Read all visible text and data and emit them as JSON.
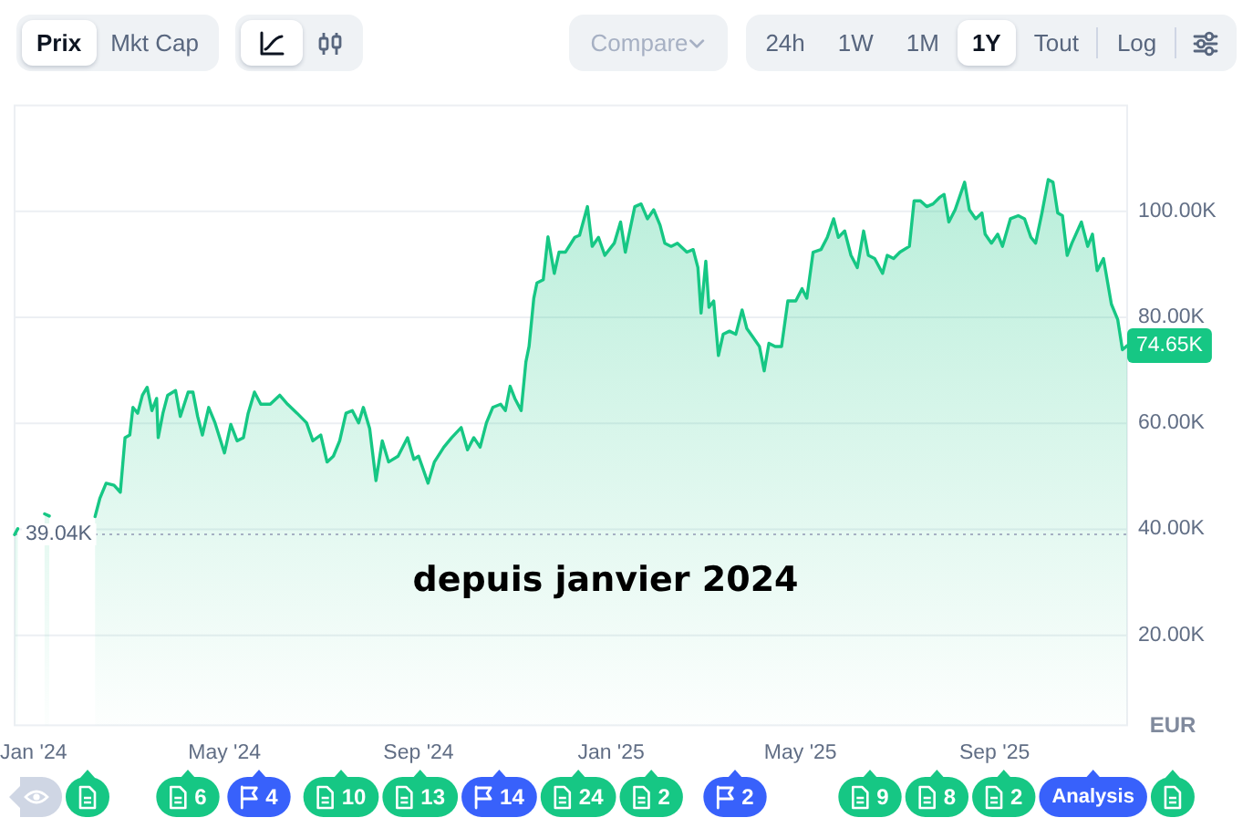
{
  "chart_data": [
    {
      "type": "other",
      "annotations": [
        "Prix",
        "Mkt Cap",
        "Compare",
        "24h",
        "1W",
        "1M",
        "1Y",
        "Tout",
        "Log"
      ]
    },
    {
      "type": "area",
      "x": [
        "2023-12-20",
        "2023-12-22",
        "2023-12-27",
        "2024-01-08",
        "2024-01-11",
        "2024-01-20",
        "2024-02-09",
        "2024-02-12",
        "2024-02-16",
        "2024-02-21",
        "2024-02-25",
        "2024-02-28",
        "2024-03-02",
        "2024-03-04",
        "2024-03-07",
        "2024-03-10",
        "2024-03-13",
        "2024-03-16",
        "2024-03-19",
        "2024-03-20",
        "2024-03-23",
        "2024-03-26",
        "2024-03-31",
        "2024-04-03",
        "2024-04-08",
        "2024-04-11",
        "2024-04-14",
        "2024-04-17",
        "2024-04-21",
        "2024-04-25",
        "2024-05-01",
        "2024-05-05",
        "2024-05-09",
        "2024-05-13",
        "2024-05-16",
        "2024-05-20",
        "2024-05-24",
        "2024-05-30",
        "2024-06-05",
        "2024-06-10",
        "2024-06-16",
        "2024-06-22",
        "2024-06-26",
        "2024-07-01",
        "2024-07-05",
        "2024-07-09",
        "2024-07-13",
        "2024-07-17",
        "2024-07-21",
        "2024-07-25",
        "2024-07-28",
        "2024-08-01",
        "2024-08-05",
        "2024-08-09",
        "2024-08-13",
        "2024-08-19",
        "2024-08-25",
        "2024-08-29",
        "2024-09-01",
        "2024-09-07",
        "2024-09-11",
        "2024-09-17",
        "2024-09-22",
        "2024-09-28",
        "2024-10-02",
        "2024-10-06",
        "2024-10-10",
        "2024-10-14",
        "2024-10-18",
        "2024-10-23",
        "2024-10-26",
        "2024-10-29",
        "2024-11-01",
        "2024-11-05",
        "2024-11-08",
        "2024-11-10",
        "2024-11-13",
        "2024-11-15",
        "2024-11-19",
        "2024-11-22",
        "2024-11-26",
        "2024-11-29",
        "2024-12-03",
        "2024-12-09",
        "2024-12-12",
        "2024-12-17",
        "2024-12-20",
        "2024-12-24",
        "2024-12-28",
        "2025-01-03",
        "2025-01-07",
        "2025-01-10",
        "2025-01-16",
        "2025-01-20",
        "2025-01-24",
        "2025-01-28",
        "2025-02-01",
        "2025-02-04",
        "2025-02-08",
        "2025-02-12",
        "2025-02-18",
        "2025-02-22",
        "2025-02-25",
        "2025-02-27",
        "2025-03-02",
        "2025-03-04",
        "2025-03-07",
        "2025-03-10",
        "2025-03-13",
        "2025-03-17",
        "2025-03-21",
        "2025-03-25",
        "2025-03-28",
        "2025-04-01",
        "2025-04-05",
        "2025-04-08",
        "2025-04-11",
        "2025-04-15",
        "2025-04-19",
        "2025-04-23",
        "2025-04-28",
        "2025-05-02",
        "2025-05-05",
        "2025-05-09",
        "2025-05-14",
        "2025-05-18",
        "2025-05-22",
        "2025-05-25",
        "2025-05-29",
        "2025-06-02",
        "2025-06-06",
        "2025-06-10",
        "2025-06-13",
        "2025-06-17",
        "2025-06-22",
        "2025-06-25",
        "2025-06-29",
        "2025-07-03",
        "2025-07-09",
        "2025-07-12",
        "2025-07-16",
        "2025-07-20",
        "2025-07-24",
        "2025-07-28",
        "2025-07-31",
        "2025-08-03",
        "2025-08-07",
        "2025-08-13",
        "2025-08-16",
        "2025-08-20",
        "2025-08-24",
        "2025-08-26",
        "2025-08-30",
        "2025-09-03",
        "2025-09-06",
        "2025-09-11",
        "2025-09-16",
        "2025-09-20",
        "2025-09-24",
        "2025-09-27",
        "2025-10-01",
        "2025-10-05",
        "2025-10-08",
        "2025-10-11",
        "2025-10-14",
        "2025-10-17",
        "2025-10-20",
        "2025-10-26",
        "2025-10-30",
        "2025-11-02",
        "2025-11-05",
        "2025-11-09",
        "2025-11-14",
        "2025-11-18",
        "2025-11-21",
        "2025-11-24"
      ],
      "series": [
        {
          "color": "#16c784",
          "values": [
            39000,
            40100,
            null,
            42900,
            42500,
            null,
            42400,
            45800,
            48700,
            48300,
            47000,
            57300,
            57800,
            63000,
            61900,
            65300,
            66800,
            62400,
            64700,
            57300,
            61900,
            65300,
            66200,
            61300,
            65900,
            65900,
            61300,
            57800,
            63000,
            60100,
            54400,
            59800,
            56700,
            57300,
            61900,
            65900,
            63600,
            63600,
            65300,
            63600,
            61900,
            60100,
            56700,
            57800,
            52700,
            53800,
            56700,
            61900,
            62400,
            60100,
            63000,
            59000,
            49200,
            56700,
            52700,
            53800,
            57300,
            53200,
            53800,
            48700,
            52700,
            55500,
            57300,
            59200,
            55000,
            57300,
            55500,
            60100,
            63000,
            63600,
            62400,
            67000,
            64700,
            62400,
            71600,
            74500,
            83600,
            86500,
            87100,
            95200,
            88300,
            92300,
            92300,
            95100,
            95500,
            100900,
            93400,
            95100,
            91700,
            94000,
            98000,
            92300,
            100900,
            101400,
            98600,
            100300,
            97400,
            94000,
            93400,
            94000,
            92300,
            92800,
            89400,
            80800,
            90600,
            81900,
            83100,
            72800,
            76800,
            77400,
            76800,
            81400,
            77900,
            76200,
            74500,
            69900,
            75100,
            74500,
            74500,
            83100,
            83100,
            85400,
            83600,
            92300,
            92800,
            95100,
            98600,
            95100,
            96300,
            91700,
            89400,
            96300,
            91700,
            91100,
            88300,
            91700,
            91100,
            92300,
            93400,
            102000,
            102000,
            100900,
            101400,
            102600,
            103200,
            98000,
            100300,
            105500,
            100300,
            98600,
            99700,
            95700,
            94000,
            95700,
            93400,
            98600,
            99200,
            98600,
            95100,
            94000,
            99700,
            106000,
            105500,
            99700,
            99200,
            91700,
            94000,
            98000,
            93400,
            95700,
            88800,
            91100,
            82500,
            79600,
            73900,
            74650
          ]
        }
      ],
      "xlim": [
        "2023-12-20",
        "2025-11-24"
      ],
      "xticks": [
        {
          "value": "2024-01-01",
          "label": "Jan '24"
        },
        {
          "value": "2024-05-01",
          "label": "May '24"
        },
        {
          "value": "2024-09-01",
          "label": "Sep '24"
        },
        {
          "value": "2025-01-01",
          "label": "Jan '25"
        },
        {
          "value": "2025-05-01",
          "label": "May '25"
        },
        {
          "value": "2025-09-01",
          "label": "Sep '25"
        }
      ],
      "ylim": [
        3000,
        120000
      ],
      "yticks": [
        {
          "value": 20000,
          "label": "20.00K"
        },
        {
          "value": 40000,
          "label": "40.00K"
        },
        {
          "value": 60000,
          "label": "60.00K"
        },
        {
          "value": 80000,
          "label": "80.00K"
        },
        {
          "value": 100000,
          "label": "100.00K"
        }
      ],
      "ylabel": "EUR",
      "grid": "y",
      "ref_lines": [
        {
          "axis": "y",
          "value": 39040,
          "label": "39.04K",
          "line_style": "dotted",
          "color": "#a6b0c3"
        }
      ],
      "annotations": [
        "depuis janvier 2024",
        {
          "text": "74.65K",
          "x": "2025-11-24",
          "y": 74650
        },
        "6",
        "4",
        "10",
        "13",
        "14",
        "24",
        "2",
        "2",
        "9",
        "8",
        "2",
        "Analysis"
      ]
    }
  ]
}
